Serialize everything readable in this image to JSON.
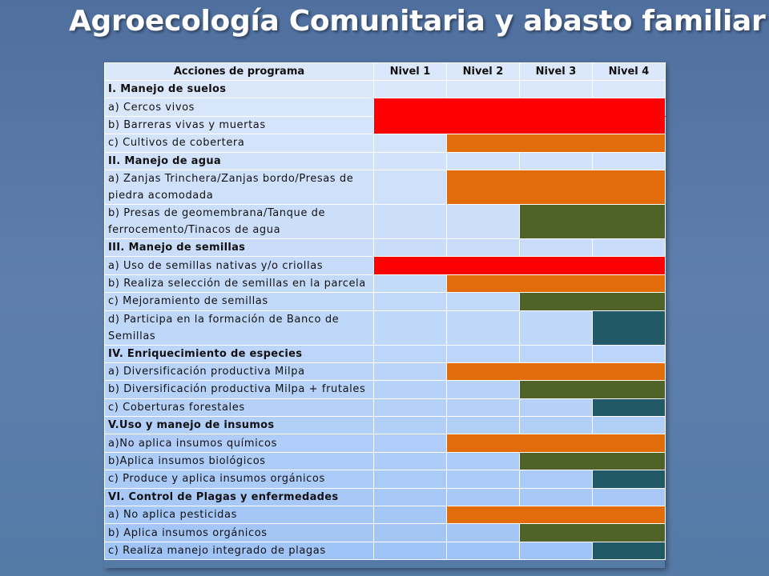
{
  "title": "Agroecología Comunitaria y abasto familiar",
  "colors": {
    "red": "#ff0000",
    "orange": "#e36c0a",
    "olive": "#4f6228",
    "teal": "#215967"
  },
  "table": {
    "headers": [
      "Acciones de programa",
      "Nivel 1",
      "Nivel 2",
      "Nivel 3",
      "Nivel 4"
    ],
    "rows": [
      {
        "label": "I. Manejo de suelos",
        "section": true,
        "cells": [
          null,
          null,
          null,
          null
        ]
      },
      {
        "label": "a) Cercos vivos",
        "cells": [
          "red",
          "red",
          "red",
          "red"
        ]
      },
      {
        "label": "b) Barreras vivas y muertas",
        "cells": [
          "red",
          "red",
          "red",
          "red"
        ]
      },
      {
        "label": "c) Cultivos de cobertera",
        "cells": [
          null,
          "orange",
          "orange",
          "orange"
        ]
      },
      {
        "label": "II. Manejo de agua",
        "section": true,
        "cells": [
          null,
          null,
          null,
          null
        ]
      },
      {
        "label": "a) Zanjas Trinchera/Zanjas bordo/Presas de piedra acomodada",
        "tall": true,
        "cells": [
          null,
          "orange",
          "orange",
          "orange"
        ]
      },
      {
        "label": "b) Presas de geomembrana/Tanque de ferrocemento/Tinacos de agua",
        "tall": true,
        "cells": [
          null,
          null,
          "olive",
          "olive"
        ]
      },
      {
        "label": "III. Manejo de semillas",
        "section": true,
        "cells": [
          null,
          null,
          null,
          null
        ]
      },
      {
        "label": "a) Uso de semillas nativas y/o criollas",
        "cells": [
          "red",
          "red",
          "red",
          "red"
        ]
      },
      {
        "label": "b) Realiza selección de semillas en la parcela",
        "cells": [
          null,
          "orange",
          "orange",
          "orange"
        ]
      },
      {
        "label": "c) Mejoramiento de semillas",
        "cells": [
          null,
          null,
          "olive",
          "olive"
        ]
      },
      {
        "label": "d) Participa en la formación de Banco de Semillas",
        "tall": true,
        "cells": [
          null,
          null,
          null,
          "teal"
        ]
      },
      {
        "label": "IV. Enriquecimiento de especies",
        "section": true,
        "cells": [
          null,
          null,
          null,
          null
        ]
      },
      {
        "label": "a) Diversificación productiva Milpa",
        "cells": [
          null,
          "orange",
          "orange",
          "orange"
        ]
      },
      {
        "label": "b) Diversificación productiva Milpa + frutales",
        "cells": [
          null,
          null,
          "olive",
          "olive"
        ]
      },
      {
        "label": "c) Coberturas forestales",
        "cells": [
          null,
          null,
          null,
          "teal"
        ]
      },
      {
        "label": "V.Uso y manejo de insumos",
        "section": true,
        "cells": [
          null,
          null,
          null,
          null
        ]
      },
      {
        "label": "a)No aplica insumos químicos",
        "cells": [
          null,
          "orange",
          "orange",
          "orange"
        ]
      },
      {
        "label": "b)Aplica insumos biológicos",
        "cells": [
          null,
          null,
          "olive",
          "olive"
        ]
      },
      {
        "label": "c) Produce y aplica insumos orgánicos",
        "cells": [
          null,
          null,
          null,
          "teal"
        ]
      },
      {
        "label": "VI. Control de Plagas y enfermedades",
        "section": true,
        "cells": [
          null,
          null,
          null,
          null
        ]
      },
      {
        "label": "a) No aplica pesticidas",
        "cells": [
          null,
          "orange",
          "orange",
          "orange"
        ]
      },
      {
        "label": "b) Aplica insumos orgánicos",
        "cells": [
          null,
          null,
          "olive",
          "olive"
        ]
      },
      {
        "label": "c) Realiza manejo integrado de plagas",
        "cells": [
          null,
          null,
          null,
          "teal"
        ]
      }
    ]
  }
}
